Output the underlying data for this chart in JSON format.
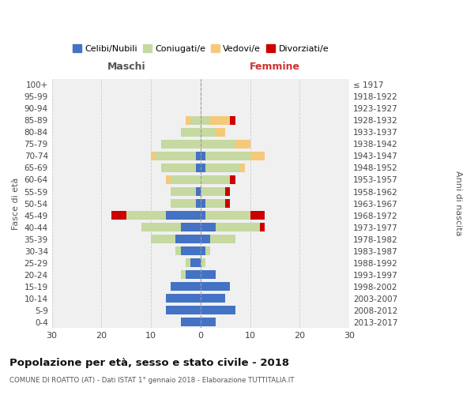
{
  "age_groups": [
    "0-4",
    "5-9",
    "10-14",
    "15-19",
    "20-24",
    "25-29",
    "30-34",
    "35-39",
    "40-44",
    "45-49",
    "50-54",
    "55-59",
    "60-64",
    "65-69",
    "70-74",
    "75-79",
    "80-84",
    "85-89",
    "90-94",
    "95-99",
    "100+"
  ],
  "birth_years": [
    "2013-2017",
    "2008-2012",
    "2003-2007",
    "1998-2002",
    "1993-1997",
    "1988-1992",
    "1983-1987",
    "1978-1982",
    "1973-1977",
    "1968-1972",
    "1963-1967",
    "1958-1962",
    "1953-1957",
    "1948-1952",
    "1943-1947",
    "1938-1942",
    "1933-1937",
    "1928-1932",
    "1923-1927",
    "1918-1922",
    "≤ 1917"
  ],
  "maschi": {
    "celibi": [
      4,
      7,
      7,
      6,
      3,
      2,
      4,
      5,
      4,
      7,
      1,
      1,
      0,
      1,
      1,
      0,
      0,
      0,
      0,
      0,
      0
    ],
    "coniugati": [
      0,
      0,
      0,
      0,
      1,
      1,
      1,
      5,
      8,
      8,
      5,
      5,
      6,
      7,
      8,
      8,
      4,
      2,
      0,
      0,
      0
    ],
    "vedovi": [
      0,
      0,
      0,
      0,
      0,
      0,
      0,
      0,
      0,
      0,
      0,
      0,
      1,
      0,
      1,
      0,
      0,
      1,
      0,
      0,
      0
    ],
    "divorziati": [
      0,
      0,
      0,
      0,
      0,
      0,
      0,
      0,
      0,
      3,
      0,
      0,
      0,
      0,
      0,
      0,
      0,
      0,
      0,
      0,
      0
    ]
  },
  "femmine": {
    "nubili": [
      3,
      7,
      5,
      6,
      3,
      0,
      1,
      2,
      3,
      1,
      1,
      0,
      0,
      1,
      1,
      0,
      0,
      0,
      0,
      0,
      0
    ],
    "coniugate": [
      0,
      0,
      0,
      0,
      0,
      1,
      1,
      5,
      9,
      9,
      4,
      5,
      6,
      7,
      9,
      7,
      3,
      2,
      0,
      0,
      0
    ],
    "vedove": [
      0,
      0,
      0,
      0,
      0,
      0,
      0,
      0,
      0,
      0,
      0,
      0,
      0,
      1,
      3,
      3,
      2,
      4,
      0,
      0,
      0
    ],
    "divorziate": [
      0,
      0,
      0,
      0,
      0,
      0,
      0,
      0,
      1,
      3,
      1,
      1,
      1,
      0,
      0,
      0,
      0,
      1,
      0,
      0,
      0
    ]
  },
  "colors": {
    "celibi": "#4472c4",
    "coniugati": "#c5d9a0",
    "vedovi": "#f5c97a",
    "divorziati": "#cc0000"
  },
  "title": "Popolazione per età, sesso e stato civile - 2018",
  "subtitle": "COMUNE DI ROATTO (AT) - Dati ISTAT 1° gennaio 2018 - Elaborazione TUTTITALIA.IT",
  "xlabel_left": "Maschi",
  "xlabel_right": "Femmine",
  "ylabel_left": "Fasce di età",
  "ylabel_right": "Anni di nascita",
  "xlim": 30,
  "legend_labels": [
    "Celibi/Nubili",
    "Coniugati/e",
    "Vedovi/e",
    "Divorziati/e"
  ],
  "bg_color": "#ffffff",
  "plot_bg": "#f0f0f0"
}
